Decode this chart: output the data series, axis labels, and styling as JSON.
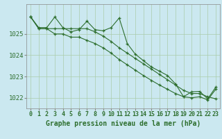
{
  "background_color": "#cbe8f0",
  "plot_bg_color": "#cbe8f0",
  "grid_color": "#aaccaa",
  "line_color": "#2d6e2d",
  "series1": {
    "x": [
      0,
      1,
      2,
      3,
      4,
      5,
      6,
      7,
      8,
      9,
      10,
      11,
      12,
      13,
      14,
      15,
      16,
      17,
      18,
      19,
      20,
      21,
      22,
      23
    ],
    "y": [
      1025.8,
      1025.3,
      1025.3,
      1025.8,
      1025.3,
      1025.1,
      1025.2,
      1025.6,
      1025.2,
      1025.15,
      1025.3,
      1025.75,
      1024.55,
      1024.05,
      1023.75,
      1023.45,
      1023.25,
      1023.05,
      1022.65,
      1022.05,
      1022.28,
      1022.3,
      1021.95,
      1022.5
    ]
  },
  "series2": {
    "x": [
      0,
      1,
      2,
      3,
      4,
      5,
      6,
      7,
      8,
      9,
      10,
      11,
      12,
      13,
      14,
      15,
      16,
      17,
      18,
      19,
      20,
      21,
      22,
      23
    ],
    "y": [
      1025.8,
      1025.25,
      1025.25,
      1025.25,
      1025.25,
      1025.25,
      1025.25,
      1025.25,
      1025.1,
      1024.9,
      1024.65,
      1024.35,
      1024.1,
      1023.85,
      1023.6,
      1023.35,
      1023.1,
      1022.85,
      1022.6,
      1022.35,
      1022.2,
      1022.2,
      1022.05,
      1021.95
    ]
  },
  "series3": {
    "x": [
      0,
      1,
      2,
      3,
      4,
      5,
      6,
      7,
      8,
      9,
      10,
      11,
      12,
      13,
      14,
      15,
      16,
      17,
      18,
      19,
      20,
      21,
      22,
      23
    ],
    "y": [
      1025.8,
      1025.25,
      1025.25,
      1025.0,
      1025.0,
      1024.85,
      1024.85,
      1024.7,
      1024.55,
      1024.35,
      1024.1,
      1023.8,
      1023.55,
      1023.3,
      1023.05,
      1022.82,
      1022.6,
      1022.4,
      1022.2,
      1022.05,
      1022.0,
      1022.05,
      1021.9,
      1022.4
    ]
  },
  "ylim": [
    1021.5,
    1026.4
  ],
  "yticks": [
    1022,
    1023,
    1024,
    1025
  ],
  "xticks": [
    0,
    1,
    2,
    3,
    4,
    5,
    6,
    7,
    8,
    9,
    10,
    11,
    12,
    13,
    14,
    15,
    16,
    17,
    18,
    19,
    20,
    21,
    22,
    23
  ],
  "xlabel": "Graphe pression niveau de la mer (hPa)",
  "axis_fontsize": 6.5
}
